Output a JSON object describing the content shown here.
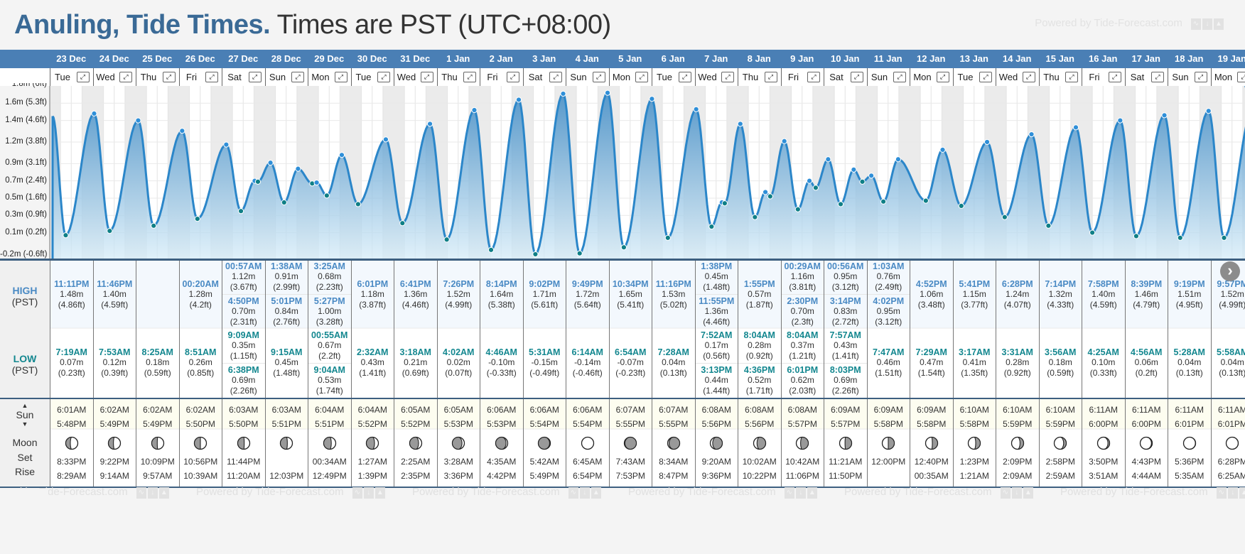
{
  "header": {
    "place_title": "Anuling, Tide Times.",
    "timezone_text": "Times are PST (UTC+08:00)",
    "powered_by": "Powered by Tide-Forecast.com"
  },
  "labels": {
    "high": "HIGH",
    "high_tz": "(PST)",
    "low": "LOW",
    "low_tz": "(PST)",
    "sun": "Sun",
    "moon": "Moon",
    "set": "Set",
    "rise": "Rise",
    "expand_icon": "expand-icon",
    "next_icon": "chevron-right-icon"
  },
  "colors": {
    "header_blue": "#4a7fb5",
    "high_text": "#4a8ac4",
    "low_text": "#13878f",
    "curve": "#2b86c9",
    "sun_row_bg": "#fdfdf0"
  },
  "chart_data": {
    "type": "area",
    "title": "Anuling, Tide Times",
    "ylabel": "Tide height",
    "ylim": [
      -0.2,
      1.8
    ],
    "y_ticks": [
      "0.1m (0.2ft)",
      "0.3m (0.9ft)",
      "0.5m (1.6ft)",
      "0.7m (2.4ft)",
      "0.9m (3.1ft)",
      "1.2m (3.8ft)",
      "1.4m (4.6ft)",
      "1.6m (5.3ft)"
    ],
    "y_tick_values": [
      0.1,
      0.3,
      0.5,
      0.7,
      0.9,
      1.15,
      1.4,
      1.6
    ],
    "bottom_tick": "-0.2m (-0.6ft)",
    "top_tick": "1.8m (6ft)",
    "grid": true,
    "legend": "none",
    "start_height": 1.45
  },
  "days": [
    {
      "date": "23 Dec",
      "dow": "Tue",
      "highs": [
        {
          "t": "11:11PM",
          "m": "1.48m",
          "ft": "(4.86ft)",
          "h": 1.48,
          "x": 23.19
        }
      ],
      "lows": [
        {
          "t": "7:19AM",
          "m": "0.07m",
          "ft": "(0.23ft)",
          "h": 0.07,
          "x": 7.32
        }
      ],
      "sun": [
        "6:01AM",
        "5:48PM"
      ],
      "moon": {
        "set": "8:33PM",
        "rise": "8:29AM",
        "phase": 0.62
      }
    },
    {
      "date": "24 Dec",
      "dow": "Wed",
      "highs": [
        {
          "t": "11:46PM",
          "m": "1.40m",
          "ft": "(4.59ft)",
          "h": 1.4,
          "x": 23.77
        }
      ],
      "lows": [
        {
          "t": "7:53AM",
          "m": "0.12m",
          "ft": "(0.39ft)",
          "h": 0.12,
          "x": 7.88
        }
      ],
      "sun": [
        "6:02AM",
        "5:49PM"
      ],
      "moon": {
        "set": "9:22PM",
        "rise": "9:14AM",
        "phase": 0.58
      }
    },
    {
      "date": "25 Dec",
      "dow": "Thu",
      "highs": [],
      "lows": [
        {
          "t": "8:25AM",
          "m": "0.18m",
          "ft": "(0.59ft)",
          "h": 0.18,
          "x": 8.42
        }
      ],
      "sun": [
        "6:02AM",
        "5:49PM"
      ],
      "moon": {
        "set": "10:09PM",
        "rise": "9:57AM",
        "phase": 0.54
      }
    },
    {
      "date": "26 Dec",
      "dow": "Fri",
      "highs": [
        {
          "t": "00:20AM",
          "m": "1.28m",
          "ft": "(4.2ft)",
          "h": 1.28,
          "x": 0.33
        }
      ],
      "lows": [
        {
          "t": "8:51AM",
          "m": "0.26m",
          "ft": "(0.85ft)",
          "h": 0.26,
          "x": 8.85
        }
      ],
      "sun": [
        "6:02AM",
        "5:50PM"
      ],
      "moon": {
        "set": "10:56PM",
        "rise": "10:39AM",
        "phase": 0.5
      }
    },
    {
      "date": "27 Dec",
      "dow": "Sat",
      "highs": [
        {
          "t": "00:57AM",
          "m": "1.12m",
          "ft": "(3.67ft)",
          "h": 1.12,
          "x": 0.95
        },
        {
          "t": "4:50PM",
          "m": "0.70m",
          "ft": "(2.31ft)",
          "h": 0.7,
          "x": 16.83
        }
      ],
      "lows": [
        {
          "t": "9:09AM",
          "m": "0.35m",
          "ft": "(1.15ft)",
          "h": 0.35,
          "x": 9.15
        },
        {
          "t": "6:38PM",
          "m": "0.69m",
          "ft": "(2.26ft)",
          "h": 0.69,
          "x": 18.63
        }
      ],
      "sun": [
        "6:03AM",
        "5:50PM"
      ],
      "moon": {
        "set": "11:44PM",
        "rise": "11:20AM",
        "phase": 0.46
      }
    },
    {
      "date": "28 Dec",
      "dow": "Sun",
      "highs": [
        {
          "t": "1:38AM",
          "m": "0.91m",
          "ft": "(2.99ft)",
          "h": 0.91,
          "x": 1.63
        },
        {
          "t": "5:01PM",
          "m": "0.84m",
          "ft": "(2.76ft)",
          "h": 0.84,
          "x": 17.02
        }
      ],
      "lows": [
        {
          "t": "9:15AM",
          "m": "0.45m",
          "ft": "(1.48ft)",
          "h": 0.45,
          "x": 9.25
        }
      ],
      "sun": [
        "6:03AM",
        "5:51PM"
      ],
      "moon": {
        "set": "",
        "rise": "12:03PM",
        "phase": 0.42
      }
    },
    {
      "date": "29 Dec",
      "dow": "Mon",
      "highs": [
        {
          "t": "3:25AM",
          "m": "0.68m",
          "ft": "(2.23ft)",
          "h": 0.68,
          "x": 3.42
        },
        {
          "t": "5:27PM",
          "m": "1.00m",
          "ft": "(3.28ft)",
          "h": 1.0,
          "x": 17.45
        }
      ],
      "lows": [
        {
          "t": "00:55AM",
          "m": "0.67m",
          "ft": "(2.2ft)",
          "h": 0.67,
          "x": 0.92
        },
        {
          "t": "9:04AM",
          "m": "0.53m",
          "ft": "(1.74ft)",
          "h": 0.53,
          "x": 9.07
        }
      ],
      "sun": [
        "6:04AM",
        "5:51PM"
      ],
      "moon": {
        "set": "00:34AM",
        "rise": "12:49PM",
        "phase": 0.37
      }
    },
    {
      "date": "30 Dec",
      "dow": "Tue",
      "highs": [
        {
          "t": "6:01PM",
          "m": "1.18m",
          "ft": "(3.87ft)",
          "h": 1.18,
          "x": 18.02
        }
      ],
      "lows": [
        {
          "t": "2:32AM",
          "m": "0.43m",
          "ft": "(1.41ft)",
          "h": 0.43,
          "x": 2.53
        }
      ],
      "sun": [
        "6:04AM",
        "5:52PM"
      ],
      "moon": {
        "set": "1:27AM",
        "rise": "1:39PM",
        "phase": 0.32
      }
    },
    {
      "date": "31 Dec",
      "dow": "Wed",
      "highs": [
        {
          "t": "6:41PM",
          "m": "1.36m",
          "ft": "(4.46ft)",
          "h": 1.36,
          "x": 18.68
        }
      ],
      "lows": [
        {
          "t": "3:18AM",
          "m": "0.21m",
          "ft": "(0.69ft)",
          "h": 0.21,
          "x": 3.3
        }
      ],
      "sun": [
        "6:05AM",
        "5:52PM"
      ],
      "moon": {
        "set": "2:25AM",
        "rise": "2:35PM",
        "phase": 0.26
      }
    },
    {
      "date": "1 Jan",
      "dow": "Thu",
      "highs": [
        {
          "t": "7:26PM",
          "m": "1.52m",
          "ft": "(4.99ft)",
          "h": 1.52,
          "x": 19.43
        }
      ],
      "lows": [
        {
          "t": "4:02AM",
          "m": "0.02m",
          "ft": "(0.07ft)",
          "h": 0.02,
          "x": 4.03
        }
      ],
      "sun": [
        "6:05AM",
        "5:53PM"
      ],
      "moon": {
        "set": "3:28AM",
        "rise": "3:36PM",
        "phase": 0.2
      }
    },
    {
      "date": "2 Jan",
      "dow": "Fri",
      "highs": [
        {
          "t": "8:14PM",
          "m": "1.64m",
          "ft": "(5.38ft)",
          "h": 1.64,
          "x": 20.23
        }
      ],
      "lows": [
        {
          "t": "4:46AM",
          "m": "-0.10m",
          "ft": "(-0.33ft)",
          "h": -0.1,
          "x": 4.77
        }
      ],
      "sun": [
        "6:06AM",
        "5:53PM"
      ],
      "moon": {
        "set": "4:35AM",
        "rise": "4:42PM",
        "phase": 0.14
      }
    },
    {
      "date": "3 Jan",
      "dow": "Sat",
      "highs": [
        {
          "t": "9:02PM",
          "m": "1.71m",
          "ft": "(5.61ft)",
          "h": 1.71,
          "x": 21.03
        }
      ],
      "lows": [
        {
          "t": "5:31AM",
          "m": "-0.15m",
          "ft": "(-0.49ft)",
          "h": -0.15,
          "x": 5.52
        }
      ],
      "sun": [
        "6:06AM",
        "5:54PM"
      ],
      "moon": {
        "set": "5:42AM",
        "rise": "5:49PM",
        "phase": 0.06
      }
    },
    {
      "date": "4 Jan",
      "dow": "Sun",
      "highs": [
        {
          "t": "9:49PM",
          "m": "1.72m",
          "ft": "(5.64ft)",
          "h": 1.72,
          "x": 21.82
        }
      ],
      "lows": [
        {
          "t": "6:14AM",
          "m": "-0.14m",
          "ft": "(-0.46ft)",
          "h": -0.14,
          "x": 6.23
        }
      ],
      "sun": [
        "6:06AM",
        "5:54PM"
      ],
      "moon": {
        "set": "6:45AM",
        "rise": "6:54PM",
        "phase": 0.0
      }
    },
    {
      "date": "5 Jan",
      "dow": "Mon",
      "highs": [
        {
          "t": "10:34PM",
          "m": "1.65m",
          "ft": "(5.41ft)",
          "h": 1.65,
          "x": 22.57
        }
      ],
      "lows": [
        {
          "t": "6:54AM",
          "m": "-0.07m",
          "ft": "(-0.23ft)",
          "h": -0.07,
          "x": 6.9
        }
      ],
      "sun": [
        "6:07AM",
        "5:55PM"
      ],
      "moon": {
        "set": "7:43AM",
        "rise": "7:53PM",
        "phase": -0.05
      }
    },
    {
      "date": "6 Jan",
      "dow": "Tue",
      "highs": [
        {
          "t": "11:16PM",
          "m": "1.53m",
          "ft": "(5.02ft)",
          "h": 1.53,
          "x": 23.27
        }
      ],
      "lows": [
        {
          "t": "7:28AM",
          "m": "0.04m",
          "ft": "(0.13ft)",
          "h": 0.04,
          "x": 7.47
        }
      ],
      "sun": [
        "6:07AM",
        "5:55PM"
      ],
      "moon": {
        "set": "8:34AM",
        "rise": "8:47PM",
        "phase": -0.12
      }
    },
    {
      "date": "7 Jan",
      "dow": "Wed",
      "highs": [
        {
          "t": "1:38PM",
          "m": "0.45m",
          "ft": "(1.48ft)",
          "h": 0.45,
          "x": 13.63
        },
        {
          "t": "11:55PM",
          "m": "1.36m",
          "ft": "(4.46ft)",
          "h": 1.36,
          "x": 23.92
        }
      ],
      "lows": [
        {
          "t": "7:52AM",
          "m": "0.17m",
          "ft": "(0.56ft)",
          "h": 0.17,
          "x": 7.87
        },
        {
          "t": "3:13PM",
          "m": "0.44m",
          "ft": "(1.44ft)",
          "h": 0.44,
          "x": 15.22
        }
      ],
      "sun": [
        "6:08AM",
        "5:56PM"
      ],
      "moon": {
        "set": "9:20AM",
        "rise": "9:36PM",
        "phase": -0.2
      }
    },
    {
      "date": "8 Jan",
      "dow": "Thu",
      "highs": [
        {
          "t": "1:55PM",
          "m": "0.57m",
          "ft": "(1.87ft)",
          "h": 0.57,
          "x": 13.92
        }
      ],
      "lows": [
        {
          "t": "8:04AM",
          "m": "0.28m",
          "ft": "(0.92ft)",
          "h": 0.28,
          "x": 8.07
        },
        {
          "t": "4:36PM",
          "m": "0.52m",
          "ft": "(1.71ft)",
          "h": 0.52,
          "x": 16.6
        }
      ],
      "sun": [
        "6:08AM",
        "5:56PM"
      ],
      "moon": {
        "set": "10:02AM",
        "rise": "10:22PM",
        "phase": -0.28
      }
    },
    {
      "date": "9 Jan",
      "dow": "Fri",
      "highs": [
        {
          "t": "00:29AM",
          "m": "1.16m",
          "ft": "(3.81ft)",
          "h": 1.16,
          "x": 0.48
        },
        {
          "t": "2:30PM",
          "m": "0.70m",
          "ft": "(2.3ft)",
          "h": 0.7,
          "x": 14.5
        }
      ],
      "lows": [
        {
          "t": "8:04AM",
          "m": "0.37m",
          "ft": "(1.21ft)",
          "h": 0.37,
          "x": 8.07
        },
        {
          "t": "6:01PM",
          "m": "0.62m",
          "ft": "(2.03ft)",
          "h": 0.62,
          "x": 18.02
        }
      ],
      "sun": [
        "6:08AM",
        "5:57PM"
      ],
      "moon": {
        "set": "10:42AM",
        "rise": "11:06PM",
        "phase": -0.36
      }
    },
    {
      "date": "10 Jan",
      "dow": "Sat",
      "highs": [
        {
          "t": "00:56AM",
          "m": "0.95m",
          "ft": "(3.12ft)",
          "h": 0.95,
          "x": 0.93
        },
        {
          "t": "3:14PM",
          "m": "0.83m",
          "ft": "(2.72ft)",
          "h": 0.83,
          "x": 15.23
        }
      ],
      "lows": [
        {
          "t": "7:57AM",
          "m": "0.43m",
          "ft": "(1.41ft)",
          "h": 0.43,
          "x": 7.95
        },
        {
          "t": "8:03PM",
          "m": "0.69m",
          "ft": "(2.26ft)",
          "h": 0.69,
          "x": 20.05
        }
      ],
      "sun": [
        "6:09AM",
        "5:57PM"
      ],
      "moon": {
        "set": "11:21AM",
        "rise": "11:50PM",
        "phase": -0.45
      }
    },
    {
      "date": "11 Jan",
      "dow": "Sun",
      "highs": [
        {
          "t": "1:03AM",
          "m": "0.76m",
          "ft": "(2.49ft)",
          "h": 0.76,
          "x": 1.05
        },
        {
          "t": "4:02PM",
          "m": "0.95m",
          "ft": "(3.12ft)",
          "h": 0.95,
          "x": 16.03
        }
      ],
      "lows": [
        {
          "t": "7:47AM",
          "m": "0.46m",
          "ft": "(1.51ft)",
          "h": 0.46,
          "x": 7.78
        }
      ],
      "sun": [
        "6:09AM",
        "5:58PM"
      ],
      "moon": {
        "set": "12:00PM",
        "rise": "",
        "phase": -0.5
      }
    },
    {
      "date": "12 Jan",
      "dow": "Mon",
      "highs": [
        {
          "t": "4:52PM",
          "m": "1.06m",
          "ft": "(3.48ft)",
          "h": 1.06,
          "x": 16.87
        }
      ],
      "lows": [
        {
          "t": "7:29AM",
          "m": "0.47m",
          "ft": "(1.54ft)",
          "h": 0.47,
          "x": 7.48
        }
      ],
      "sun": [
        "6:09AM",
        "5:58PM"
      ],
      "moon": {
        "set": "12:40PM",
        "rise": "00:35AM",
        "phase": -0.56
      }
    },
    {
      "date": "13 Jan",
      "dow": "Tue",
      "highs": [
        {
          "t": "5:41PM",
          "m": "1.15m",
          "ft": "(3.77ft)",
          "h": 1.15,
          "x": 17.68
        }
      ],
      "lows": [
        {
          "t": "3:17AM",
          "m": "0.41m",
          "ft": "(1.35ft)",
          "h": 0.41,
          "x": 3.28
        }
      ],
      "sun": [
        "6:10AM",
        "5:58PM"
      ],
      "moon": {
        "set": "1:23PM",
        "rise": "1:21AM",
        "phase": -0.62
      }
    },
    {
      "date": "14 Jan",
      "dow": "Wed",
      "highs": [
        {
          "t": "6:28PM",
          "m": "1.24m",
          "ft": "(4.07ft)",
          "h": 1.24,
          "x": 18.47
        }
      ],
      "lows": [
        {
          "t": "3:31AM",
          "m": "0.28m",
          "ft": "(0.92ft)",
          "h": 0.28,
          "x": 3.52
        }
      ],
      "sun": [
        "6:10AM",
        "5:59PM"
      ],
      "moon": {
        "set": "2:09PM",
        "rise": "2:09AM",
        "phase": -0.7
      }
    },
    {
      "date": "15 Jan",
      "dow": "Thu",
      "highs": [
        {
          "t": "7:14PM",
          "m": "1.32m",
          "ft": "(4.33ft)",
          "h": 1.32,
          "x": 19.23
        }
      ],
      "lows": [
        {
          "t": "3:56AM",
          "m": "0.18m",
          "ft": "(0.59ft)",
          "h": 0.18,
          "x": 3.93
        }
      ],
      "sun": [
        "6:10AM",
        "5:59PM"
      ],
      "moon": {
        "set": "2:58PM",
        "rise": "2:59AM",
        "phase": -0.78
      }
    },
    {
      "date": "16 Jan",
      "dow": "Fri",
      "highs": [
        {
          "t": "7:58PM",
          "m": "1.40m",
          "ft": "(4.59ft)",
          "h": 1.4,
          "x": 19.97
        }
      ],
      "lows": [
        {
          "t": "4:25AM",
          "m": "0.10m",
          "ft": "(0.33ft)",
          "h": 0.1,
          "x": 4.42
        }
      ],
      "sun": [
        "6:11AM",
        "6:00PM"
      ],
      "moon": {
        "set": "3:50PM",
        "rise": "3:51AM",
        "phase": -0.86
      }
    },
    {
      "date": "17 Jan",
      "dow": "Sat",
      "highs": [
        {
          "t": "8:39PM",
          "m": "1.46m",
          "ft": "(4.79ft)",
          "h": 1.46,
          "x": 20.65
        }
      ],
      "lows": [
        {
          "t": "4:56AM",
          "m": "0.06m",
          "ft": "(0.2ft)",
          "h": 0.06,
          "x": 4.93
        }
      ],
      "sun": [
        "6:11AM",
        "6:00PM"
      ],
      "moon": {
        "set": "4:43PM",
        "rise": "4:44AM",
        "phase": -0.93
      }
    },
    {
      "date": "18 Jan",
      "dow": "Sun",
      "highs": [
        {
          "t": "9:19PM",
          "m": "1.51m",
          "ft": "(4.95ft)",
          "h": 1.51,
          "x": 21.32
        }
      ],
      "lows": [
        {
          "t": "5:28AM",
          "m": "0.04m",
          "ft": "(0.13ft)",
          "h": 0.04,
          "x": 5.47
        }
      ],
      "sun": [
        "6:11AM",
        "6:01PM"
      ],
      "moon": {
        "set": "5:36PM",
        "rise": "5:35AM",
        "phase": -0.98
      }
    },
    {
      "date": "19 Jan",
      "dow": "Mon",
      "highs": [
        {
          "t": "9:57PM",
          "m": "1.52m",
          "ft": "(4.99ft)",
          "h": 1.52,
          "x": 21.95
        }
      ],
      "lows": [
        {
          "t": "5:58AM",
          "m": "0.04m",
          "ft": "(0.13ft)",
          "h": 0.04,
          "x": 5.97
        }
      ],
      "sun": [
        "6:11AM",
        "6:01PM"
      ],
      "moon": {
        "set": "6:28PM",
        "rise": "6:25AM",
        "phase": -1.0
      }
    }
  ]
}
